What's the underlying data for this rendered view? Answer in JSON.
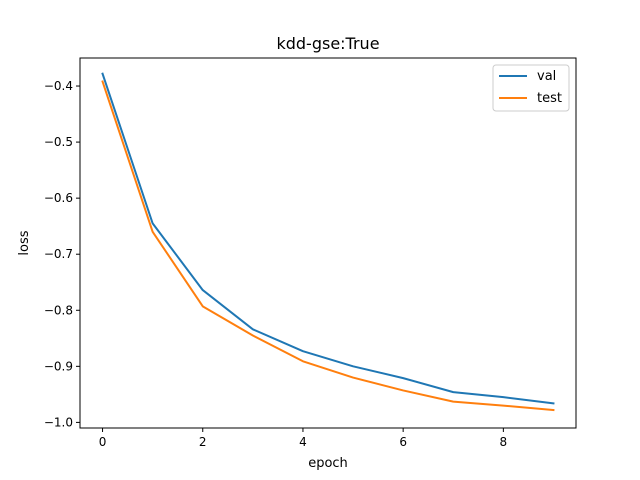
{
  "chart_data": {
    "type": "line",
    "title": "kdd-gse:True",
    "xlabel": "epoch",
    "ylabel": "loss",
    "x": [
      0,
      1,
      2,
      3,
      4,
      5,
      6,
      7,
      8,
      9
    ],
    "xlim": [
      -0.45,
      9.45
    ],
    "ylim": [
      -1.01,
      -0.35
    ],
    "xticks": [
      0,
      2,
      4,
      6,
      8
    ],
    "xtick_labels": [
      "0",
      "2",
      "4",
      "6",
      "8"
    ],
    "yticks": [
      -0.4,
      -0.5,
      -0.6,
      -0.7,
      -0.8,
      -0.9,
      -1.0
    ],
    "ytick_labels": [
      "−0.4",
      "−0.5",
      "−0.6",
      "−0.7",
      "−0.8",
      "−0.9",
      "−1.0"
    ],
    "grid": false,
    "legend_position": "top-right",
    "series": [
      {
        "name": "val",
        "color": "#1f77b4",
        "values": [
          -0.378,
          -0.645,
          -0.764,
          -0.834,
          -0.873,
          -0.9,
          -0.921,
          -0.946,
          -0.955,
          -0.966
        ]
      },
      {
        "name": "test",
        "color": "#ff7f0e",
        "values": [
          -0.392,
          -0.66,
          -0.793,
          -0.845,
          -0.891,
          -0.92,
          -0.943,
          -0.963,
          -0.97,
          -0.978
        ]
      }
    ]
  }
}
